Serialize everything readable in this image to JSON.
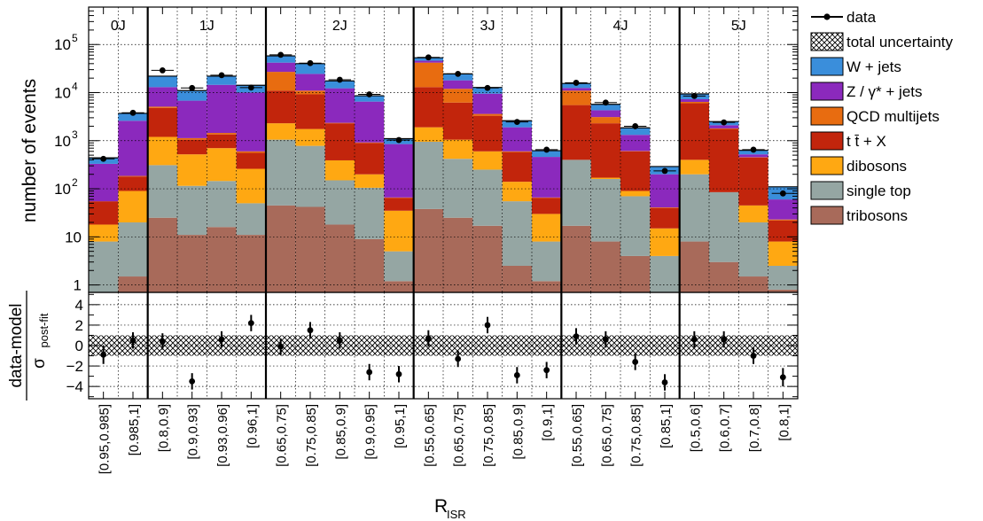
{
  "chart_data": {
    "type": "bar",
    "stacked": true,
    "y_scale": "log",
    "ylim": [
      0.7,
      600000
    ],
    "ylabel": "number of events",
    "yticks": [
      {
        "value": 1,
        "label": "1"
      },
      {
        "value": 10,
        "label": "10"
      },
      {
        "value": 100,
        "label": "10",
        "sup": "2"
      },
      {
        "value": 1000,
        "label": "10",
        "sup": "3"
      },
      {
        "value": 10000,
        "label": "10",
        "sup": "4"
      },
      {
        "value": 100000,
        "label": "10",
        "sup": "5"
      }
    ],
    "xlabel": "R",
    "xlabel_sub": "ISR",
    "ratio_ylabel": "data-model",
    "ratio_ylabel_denominator": "σ",
    "ratio_ylabel_denominator_sub": "post-fit",
    "ratio_ylim": [
      -5.2,
      5.2
    ],
    "ratio_yticks": [
      -4,
      -2,
      0,
      2,
      4
    ],
    "grid": true,
    "legend_position": "right",
    "regions": [
      {
        "label": "0J",
        "bins": 2
      },
      {
        "label": "1J",
        "bins": 4
      },
      {
        "label": "2J",
        "bins": 5
      },
      {
        "label": "3J",
        "bins": 5
      },
      {
        "label": "4J",
        "bins": 4
      },
      {
        "label": "5J",
        "bins": 4
      }
    ],
    "categories": [
      "[0.95,0.985]",
      "[0.985,1]",
      "[0.8,0.9]",
      "[0.9,0.93]",
      "[0.93,0.96]",
      "[0.96,1]",
      "[0.65,0.75]",
      "[0.75,0.85]",
      "[0.85,0.9]",
      "[0.9,0.95]",
      "[0.95,1]",
      "[0.55,0.65]",
      "[0.65,0.75]",
      "[0.75,0.85]",
      "[0.85,0.9]",
      "[0.9,1]",
      "[0.55,0.65]",
      "[0.65,0.75]",
      "[0.75,0.85]",
      "[0.85,1]",
      "[0.5,0.6]",
      "[0.6,0.7]",
      "[0.7,0.8]",
      "[0.8,1]"
    ],
    "series": [
      {
        "name": "tribosons",
        "color": "#a86a5a",
        "values": [
          0,
          1.5,
          25,
          11,
          16,
          11,
          45,
          42,
          18,
          9,
          1.2,
          38,
          25,
          17,
          2.5,
          1.2,
          17,
          8,
          4,
          0,
          8,
          3,
          1.5,
          0.8
        ]
      },
      {
        "name": "single top",
        "color": "#95a6a3",
        "values": [
          8,
          20,
          310,
          115,
          145,
          50,
          1050,
          780,
          150,
          105,
          5,
          950,
          420,
          250,
          55,
          8,
          400,
          160,
          70,
          4,
          200,
          85,
          20,
          2.5
        ]
      },
      {
        "name": "dibosons",
        "color": "#ffa812",
        "values": [
          18,
          90,
          1200,
          520,
          700,
          260,
          2300,
          1750,
          390,
          200,
          35,
          1900,
          1050,
          600,
          140,
          30,
          400,
          170,
          90,
          15,
          400,
          80,
          45,
          8
        ]
      },
      {
        "name": "t t̄ + X",
        "color": "#c2250c",
        "values": [
          55,
          180,
          4800,
          1050,
          1350,
          560,
          11000,
          9200,
          2300,
          900,
          65,
          13000,
          6200,
          3300,
          580,
          65,
          5500,
          2300,
          600,
          40,
          6000,
          1750,
          450,
          22
        ]
      },
      {
        "name": "QCD multijets",
        "color": "#e86c10",
        "values": [
          55,
          185,
          5100,
          1130,
          1450,
          600,
          27000,
          11000,
          2350,
          920,
          66,
          42000,
          12000,
          3600,
          600,
          66,
          11000,
          3100,
          610,
          41,
          6400,
          1800,
          455,
          23
        ]
      },
      {
        "name": "Z / γ* + jets",
        "color": "#8b29bd",
        "values": [
          330,
          2600,
          13000,
          6800,
          14500,
          10000,
          42000,
          24500,
          12300,
          6500,
          850,
          46000,
          18000,
          9500,
          1900,
          460,
          12500,
          4300,
          1320,
          200,
          7300,
          2100,
          520,
          60
        ]
      },
      {
        "name": "W + jets",
        "color": "#3a8edb",
        "values": [
          440,
          3700,
          22000,
          11000,
          22000,
          14200,
          58000,
          40000,
          17500,
          8600,
          1100,
          53000,
          24500,
          12800,
          2600,
          620,
          15500,
          5700,
          1850,
          290,
          9400,
          2500,
          630,
          110
        ]
      }
    ],
    "data": {
      "name": "data",
      "values": [
        420,
        3800,
        29000,
        12500,
        23000,
        12700,
        61000,
        41000,
        18500,
        9200,
        1030,
        54000,
        24500,
        12500,
        2450,
        650,
        16000,
        6200,
        2000,
        235,
        8500,
        2400,
        650,
        80
      ]
    },
    "ratio": {
      "values": [
        -0.9,
        0.5,
        0.4,
        -3.5,
        0.6,
        2.2,
        -0.1,
        1.5,
        0.5,
        -2.6,
        -2.8,
        0.7,
        -1.3,
        2.0,
        -2.9,
        -2.4,
        0.9,
        0.6,
        -1.6,
        -3.6,
        0.6,
        0.6,
        -1.0,
        -3.1
      ],
      "errors": [
        0.9,
        0.8,
        0.8,
        0.8,
        0.8,
        0.8,
        0.8,
        0.8,
        0.8,
        0.8,
        0.8,
        0.8,
        0.8,
        0.8,
        0.8,
        0.8,
        0.8,
        0.8,
        0.8,
        0.8,
        0.8,
        0.8,
        0.8,
        0.9
      ]
    },
    "uncertainty_band_ratio": [
      -1,
      1
    ],
    "legend": [
      {
        "label": "data",
        "kind": "marker"
      },
      {
        "label": "total uncertainty",
        "kind": "hatch"
      },
      {
        "label": "W + jets",
        "color": "#3a8edb"
      },
      {
        "label": "Z / γ* + jets",
        "color": "#8b29bd"
      },
      {
        "label": "QCD multijets",
        "color": "#e86c10"
      },
      {
        "label": "t t̄ + X",
        "color": "#c2250c"
      },
      {
        "label": "dibosons",
        "color": "#ffa812"
      },
      {
        "label": "single top",
        "color": "#95a6a3"
      },
      {
        "label": "tribosons",
        "color": "#a86a5a"
      }
    ]
  }
}
